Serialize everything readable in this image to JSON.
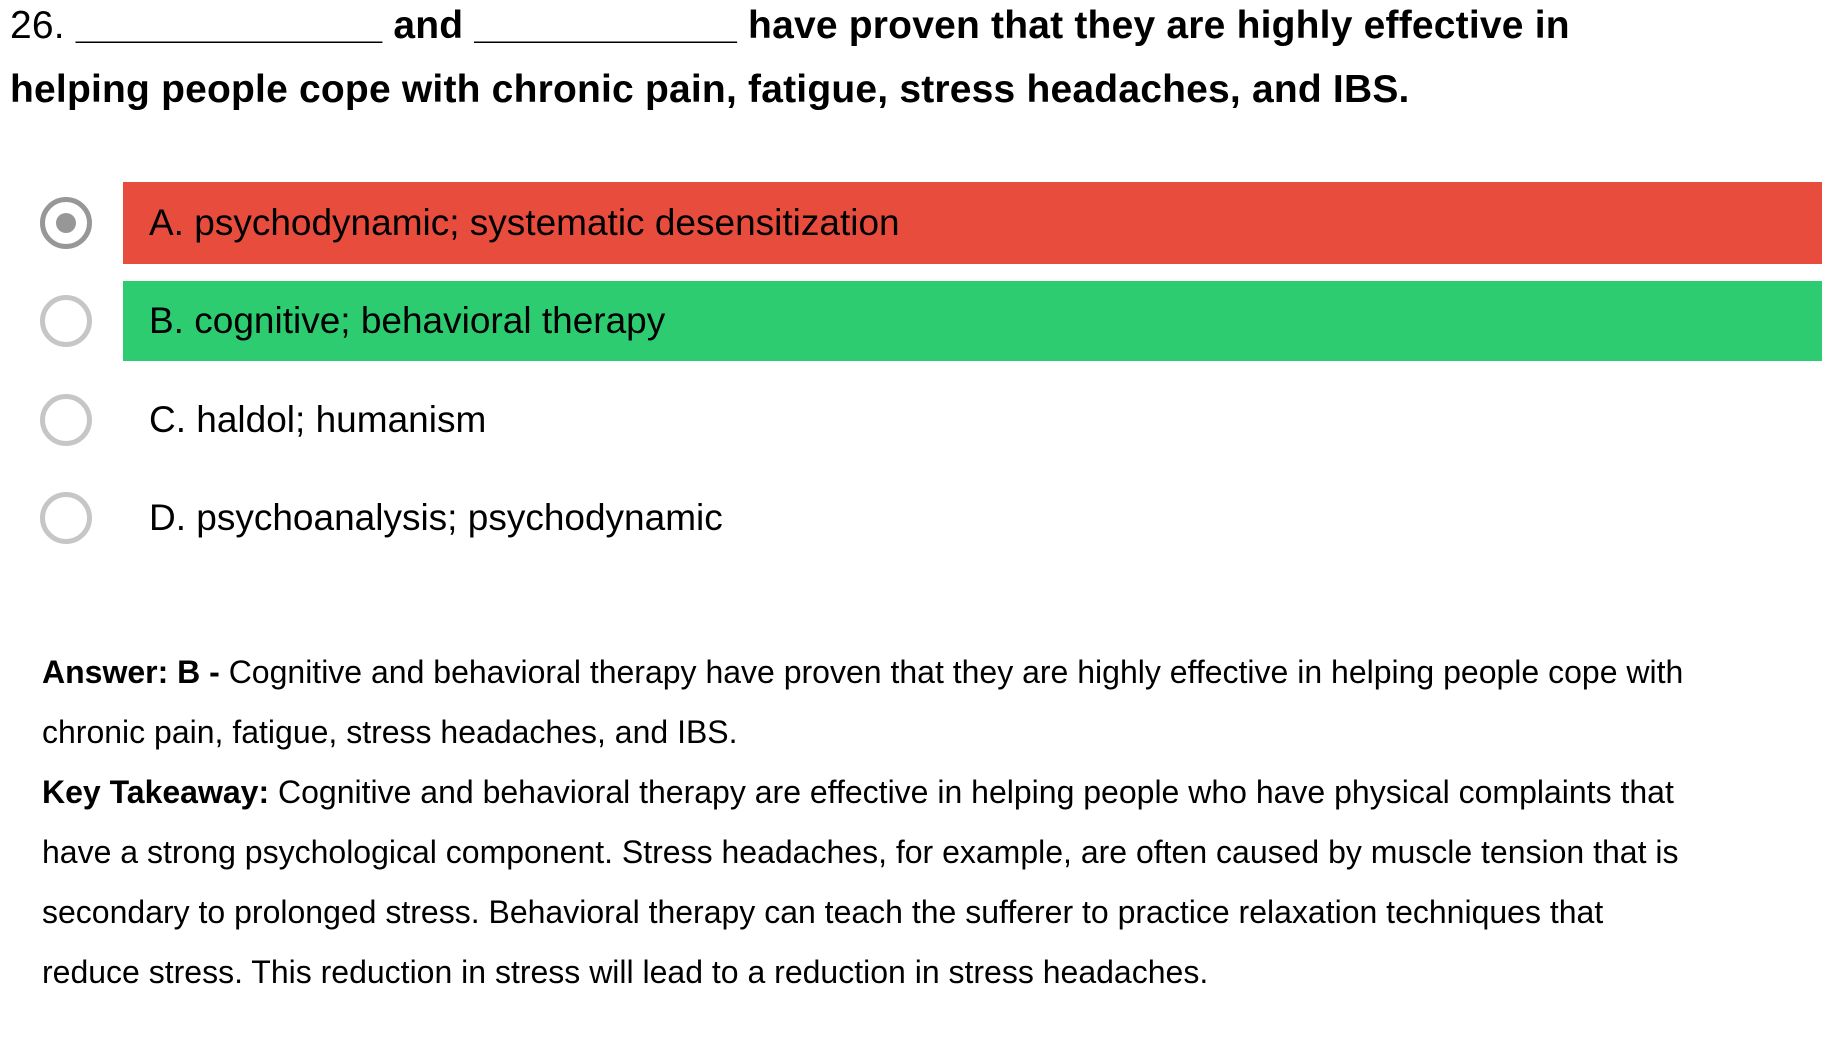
{
  "question": {
    "number": "26.",
    "line1_rest": " ______________ and ____________ have proven that they are highly effective in",
    "line2": "helping people cope with chronic pain, fatigue, stress headaches, and IBS."
  },
  "options": [
    {
      "id": "A",
      "label": "A. psychodynamic; systematic desensitization",
      "state": "incorrect",
      "selected": true,
      "highlight": "#E74C3C"
    },
    {
      "id": "B",
      "label": "B. cognitive; behavioral therapy",
      "state": "correct",
      "selected": false,
      "highlight": "#2ECC71"
    },
    {
      "id": "C",
      "label": "C. haldol; humanism",
      "state": "plain",
      "selected": false,
      "highlight": ""
    },
    {
      "id": "D",
      "label": "D. psychoanalysis; psychodynamic",
      "state": "plain",
      "selected": false,
      "highlight": ""
    }
  ],
  "explanation": {
    "answer_label": "Answer: B - ",
    "answer_text": "Cognitive and behavioral therapy have proven that they are highly effective in helping people cope with chronic pain, fatigue, stress headaches, and IBS.",
    "takeaway_label": "Key Takeaway: ",
    "takeaway_text": "Cognitive and behavioral therapy are effective in helping people who have physical complaints that have a strong psychological component. Stress headaches, for example, are often caused by muscle tension that is secondary to prolonged stress. Behavioral therapy can teach the sufferer to practice relaxation techniques that reduce stress. This reduction in stress will lead to a reduction in stress headaches."
  },
  "colors": {
    "incorrect_highlight": "#E74C3C",
    "correct_highlight": "#2ECC71",
    "radio_border_default": "#C6C6C6",
    "radio_border_selected": "#979797",
    "radio_dot": "#979797",
    "text": "#000000",
    "background": "#FFFFFF"
  }
}
